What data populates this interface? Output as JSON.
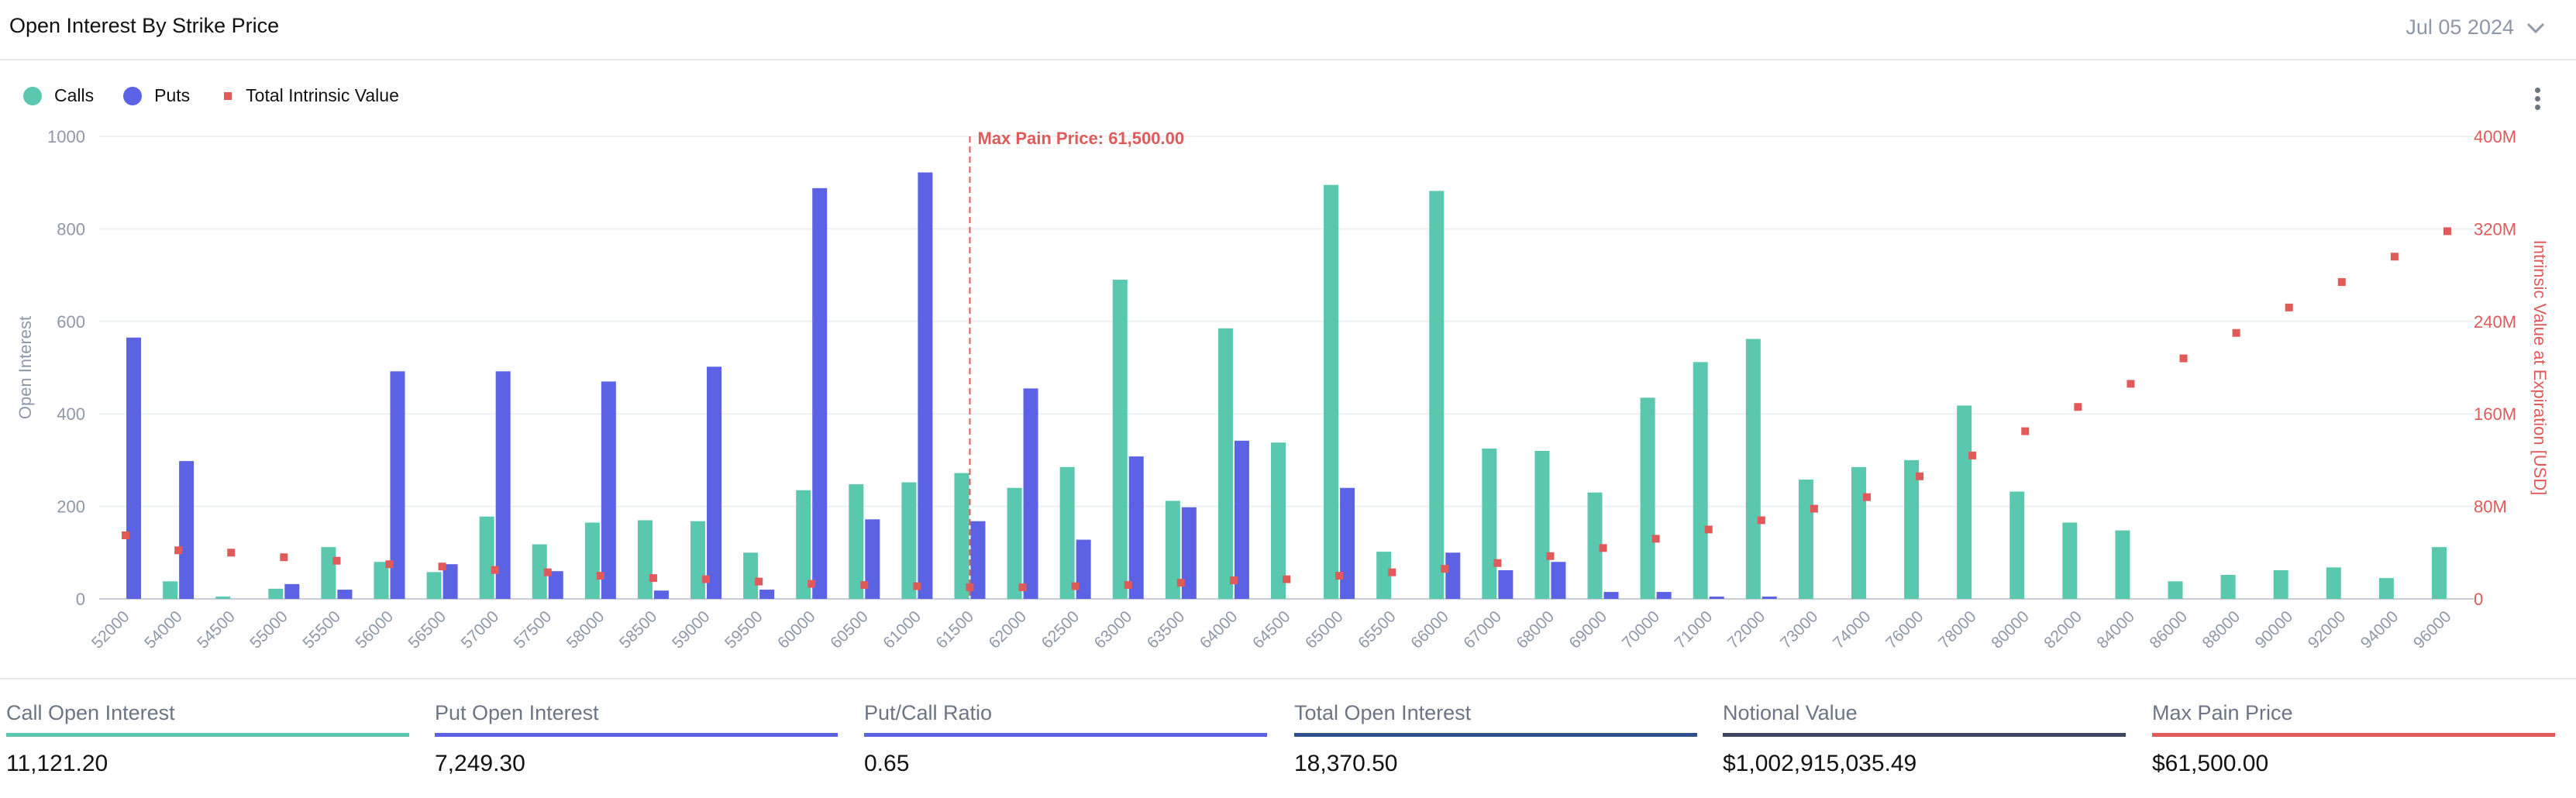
{
  "header": {
    "title": "Open Interest By Strike Price",
    "date": "Jul 05 2024"
  },
  "colors": {
    "calls": "#5ac8ae",
    "puts": "#5b63e4",
    "intrinsic": "#e05a5a",
    "maxpain": "#e05a5a",
    "oi_line": "#2f4f8f",
    "notional_line": "#3c4660"
  },
  "legend": [
    {
      "label": "Calls",
      "shape": "circle",
      "color": "#5ac8ae"
    },
    {
      "label": "Puts",
      "shape": "circle",
      "color": "#5b63e4"
    },
    {
      "label": "Total Intrinsic Value",
      "shape": "square",
      "color": "#e05a5a"
    }
  ],
  "chart_data": {
    "type": "bar",
    "categories": [
      "52000",
      "54000",
      "54500",
      "55000",
      "55500",
      "56000",
      "56500",
      "57000",
      "57500",
      "58000",
      "58500",
      "59000",
      "59500",
      "60000",
      "60500",
      "61000",
      "61500",
      "62000",
      "62500",
      "63000",
      "63500",
      "64000",
      "64500",
      "65000",
      "65500",
      "66000",
      "67000",
      "68000",
      "69000",
      "70000",
      "71000",
      "72000",
      "73000",
      "74000",
      "76000",
      "78000",
      "80000",
      "82000",
      "84000",
      "86000",
      "88000",
      "90000",
      "92000",
      "94000",
      "96000"
    ],
    "series": [
      {
        "name": "Calls",
        "axis": "left",
        "values": [
          0,
          38,
          5,
          22,
          112,
          80,
          58,
          178,
          118,
          165,
          170,
          168,
          100,
          235,
          248,
          252,
          272,
          240,
          285,
          690,
          212,
          585,
          338,
          895,
          102,
          882,
          325,
          320,
          230,
          435,
          512,
          562,
          258,
          285,
          300,
          418,
          232,
          165,
          148,
          38,
          52,
          62,
          68,
          45,
          112
        ]
      },
      {
        "name": "Puts",
        "axis": "left",
        "values": [
          565,
          298,
          0,
          32,
          20,
          492,
          75,
          492,
          60,
          470,
          18,
          502,
          20,
          888,
          172,
          922,
          168,
          455,
          128,
          308,
          198,
          342,
          0,
          240,
          0,
          100,
          62,
          80,
          15,
          15,
          5,
          5,
          0,
          0,
          0,
          0,
          0,
          0,
          0,
          0,
          0,
          0,
          0,
          0,
          0
        ]
      },
      {
        "name": "Total Intrinsic Value",
        "axis": "right",
        "type": "scatter",
        "values": [
          55,
          42,
          40,
          36,
          33,
          30,
          28,
          25,
          23,
          20,
          18,
          17,
          15,
          13,
          12,
          11,
          10,
          10,
          11,
          12,
          14,
          16,
          17,
          20,
          23,
          26,
          31,
          37,
          44,
          52,
          60,
          68,
          78,
          88,
          106,
          124,
          145,
          166,
          186,
          208,
          230,
          252,
          274,
          296,
          318
        ]
      }
    ],
    "ylabel": "Open Interest",
    "ylim": [
      0,
      1000
    ],
    "yticks": [
      0,
      200,
      400,
      600,
      800,
      1000
    ],
    "y2label": "Intrinsic Value at Expiration [USD]",
    "y2lim": [
      0,
      400
    ],
    "y2ticks": [
      "0",
      "80M",
      "160M",
      "240M",
      "320M",
      "400M"
    ],
    "annotation": {
      "category": "61500",
      "label": "Max Pain Price: 61,500.00"
    },
    "grid": true
  },
  "stats": [
    {
      "label": "Call Open Interest",
      "value": "11,121.20",
      "color": "#5ac8ae"
    },
    {
      "label": "Put Open Interest",
      "value": "7,249.30",
      "color": "#5b63e4"
    },
    {
      "label": "Put/Call Ratio",
      "value": "0.65",
      "color": "#5b63e4"
    },
    {
      "label": "Total Open Interest",
      "value": "18,370.50",
      "color": "#2f4f8f"
    },
    {
      "label": "Notional Value",
      "value": "$1,002,915,035.49",
      "color": "#3c4660"
    },
    {
      "label": "Max Pain Price",
      "value": "$61,500.00",
      "color": "#e05a5a"
    }
  ]
}
